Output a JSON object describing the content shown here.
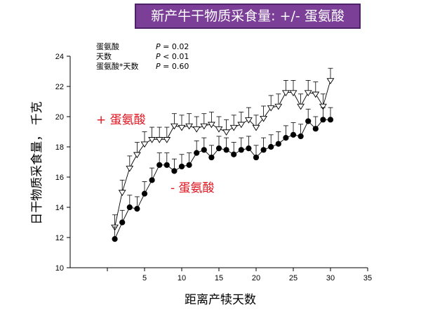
{
  "title": "新产牛干物质采食量: +/- 蛋氨酸",
  "colors": {
    "title_bg": "#7b3f98",
    "label_red": "#e0141e",
    "p_red": "#e0141e"
  },
  "stats": [
    {
      "term": "蛋氨酸",
      "p_label": "P",
      "rel": " = ",
      "value": "0.02",
      "color": "#e0141e"
    },
    {
      "term": "天数",
      "p_label": "P",
      "rel": " < ",
      "value": "0.01",
      "color": "#000000"
    },
    {
      "term": "蛋氨酸*天数",
      "p_label": "P",
      "rel": " = ",
      "value": "0.60",
      "color": "#000000"
    }
  ],
  "chart_data": {
    "type": "line",
    "xlabel": "距离产犊天数",
    "ylabel": "日干物质采食量， 千克",
    "xlim": [
      -5,
      35
    ],
    "ylim": [
      10,
      24
    ],
    "xticks": [
      0,
      5,
      10,
      15,
      20,
      25,
      30,
      35
    ],
    "xtick_labels": [
      "",
      "5",
      "10",
      "15",
      "20",
      "25",
      "30",
      "35"
    ],
    "yticks": [
      10,
      12,
      14,
      16,
      18,
      20,
      22,
      24
    ],
    "grid": false,
    "x": [
      1,
      2,
      3,
      4,
      5,
      6,
      7,
      8,
      9,
      10,
      11,
      12,
      13,
      14,
      15,
      16,
      17,
      18,
      19,
      20,
      21,
      22,
      23,
      24,
      25,
      26,
      27,
      28,
      29,
      30
    ],
    "series": [
      {
        "name": "+ 蛋氨酸",
        "marker": "open-triangle-down",
        "values": [
          12.7,
          15.0,
          16.6,
          17.5,
          18.2,
          18.5,
          18.5,
          18.5,
          19.4,
          19.3,
          19.4,
          19.2,
          19.4,
          19.5,
          19.2,
          19.0,
          19.3,
          19.5,
          19.8,
          19.3,
          19.9,
          20.6,
          20.7,
          21.6,
          21.6,
          20.7,
          21.6,
          21.5,
          20.7,
          22.4
        ],
        "error_plus": [
          0.8,
          0.8,
          0.8,
          0.8,
          0.8,
          0.8,
          0.8,
          0.8,
          0.8,
          0.8,
          0.8,
          0.8,
          0.8,
          0.8,
          0.8,
          0.8,
          0.8,
          0.8,
          0.8,
          0.8,
          0.8,
          0.8,
          0.8,
          0.8,
          0.8,
          0.8,
          0.8,
          0.8,
          0.8,
          0.8
        ]
      },
      {
        "name": "- 蛋氨酸",
        "marker": "filled-circle",
        "values": [
          11.9,
          13.0,
          14.0,
          13.9,
          14.9,
          15.8,
          16.8,
          16.8,
          16.4,
          16.7,
          16.8,
          17.6,
          17.8,
          17.3,
          17.9,
          17.8,
          17.5,
          17.8,
          17.9,
          17.3,
          17.8,
          18.0,
          18.2,
          18.6,
          18.8,
          18.7,
          19.7,
          19.2,
          19.8,
          19.8
        ],
        "error_plus": [
          0.8,
          0.8,
          0.8,
          0.8,
          0.8,
          0.8,
          0.8,
          0.8,
          0.8,
          0.8,
          0.8,
          0.8,
          0.8,
          0.8,
          0.8,
          0.8,
          0.8,
          0.8,
          0.8,
          0.8,
          0.8,
          0.8,
          0.8,
          0.8,
          0.8,
          0.8,
          0.8,
          0.8,
          0.8,
          0.8
        ]
      }
    ]
  }
}
